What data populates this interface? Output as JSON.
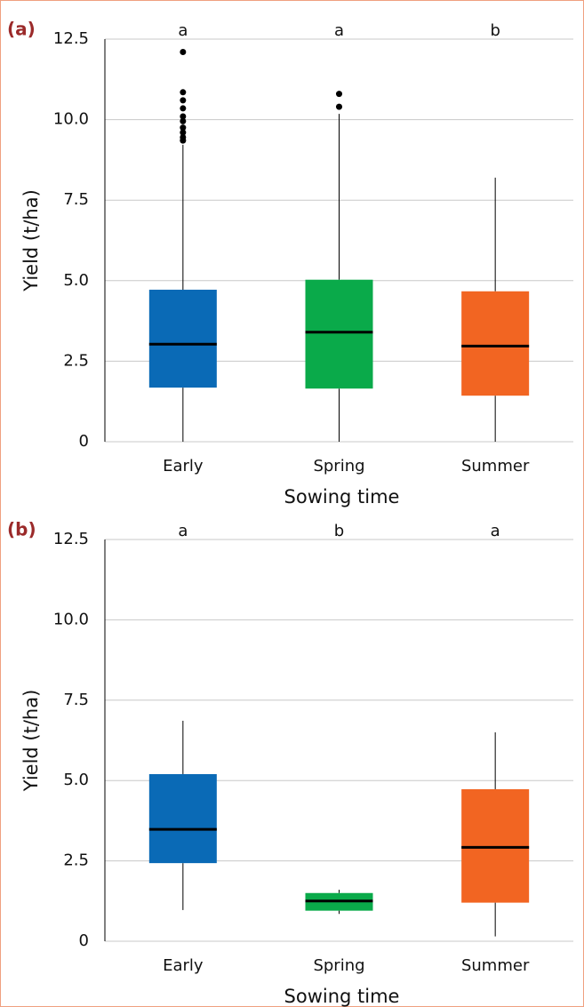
{
  "chart_data": [
    {
      "type": "box",
      "panel_label": "(a)",
      "x_label": "Sowing time",
      "y_label": "Yield (t/ha)",
      "categories": [
        "Early",
        "Spring",
        "Summer"
      ],
      "ylim": [
        0,
        12.5
      ],
      "yticks": [
        0,
        2.5,
        {
          "value": 5,
          "label": "5.0"
        },
        7.5,
        {
          "value": 10,
          "label": "10.0"
        },
        12.5
      ],
      "grid": true,
      "letters": [
        "a",
        "a",
        "b"
      ],
      "boxes": [
        {
          "color": "#0a6ab6",
          "whisker_low": 0,
          "q1": 1.68,
          "median": 3.03,
          "q3": 4.72,
          "whisker_high": 9.22,
          "outliers": [
            12.1,
            10.85,
            10.6,
            10.35,
            10.1,
            9.95,
            9.75,
            9.6,
            9.45,
            9.35
          ]
        },
        {
          "color": "#0aaa4a",
          "whisker_low": 0,
          "q1": 1.65,
          "median": 3.4,
          "q3": 5.03,
          "whisker_high": 10.18,
          "outliers": [
            10.4,
            10.8
          ]
        },
        {
          "color": "#f26522",
          "whisker_low": 0,
          "q1": 1.43,
          "median": 2.97,
          "q3": 4.67,
          "whisker_high": 8.2,
          "outliers": []
        }
      ]
    },
    {
      "type": "box",
      "panel_label": "(b)",
      "x_label": "Sowing time",
      "y_label": "Yield (t/ha)",
      "categories": [
        "Early",
        "Spring",
        "Summer"
      ],
      "ylim": [
        0,
        12.5
      ],
      "yticks": [
        0,
        2.5,
        {
          "value": 5,
          "label": "5.0"
        },
        7.5,
        {
          "value": 10,
          "label": "10.0"
        },
        12.5
      ],
      "grid": true,
      "letters": [
        "a",
        "b",
        "a"
      ],
      "boxes": [
        {
          "color": "#0a6ab6",
          "whisker_low": 0.97,
          "q1": 2.43,
          "median": 3.48,
          "q3": 5.2,
          "whisker_high": 6.86,
          "outliers": []
        },
        {
          "color": "#0aaa4a",
          "whisker_low": 0.85,
          "q1": 0.95,
          "median": 1.25,
          "q3": 1.5,
          "whisker_high": 1.6,
          "outliers": []
        },
        {
          "color": "#f26522",
          "whisker_low": 0.15,
          "q1": 1.2,
          "median": 2.92,
          "q3": 4.73,
          "whisker_high": 6.5,
          "outliers": []
        }
      ]
    }
  ]
}
